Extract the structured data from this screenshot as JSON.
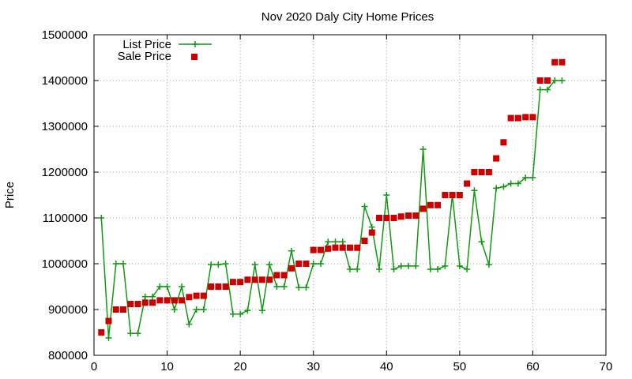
{
  "chart_data": {
    "type": "scatter",
    "title": "Nov 2020 Daly City Home Prices",
    "xlabel": "",
    "ylabel": "Price",
    "xlim": [
      0,
      70
    ],
    "ylim": [
      800000,
      1500000
    ],
    "xticks": [
      0,
      10,
      20,
      30,
      40,
      50,
      60,
      70
    ],
    "yticks": [
      800000,
      900000,
      1000000,
      1100000,
      1200000,
      1300000,
      1400000,
      1500000
    ],
    "grid": true,
    "legend_position": "top-left",
    "x": [
      1,
      2,
      3,
      4,
      5,
      6,
      7,
      8,
      9,
      10,
      11,
      12,
      13,
      14,
      15,
      16,
      17,
      18,
      19,
      20,
      21,
      22,
      23,
      24,
      25,
      26,
      27,
      28,
      29,
      30,
      31,
      32,
      33,
      34,
      35,
      36,
      37,
      38,
      39,
      40,
      41,
      42,
      43,
      44,
      45,
      46,
      47,
      48,
      49,
      50,
      51,
      52,
      53,
      54,
      55,
      56,
      57,
      58,
      59,
      60,
      61,
      62,
      63,
      64
    ],
    "series": [
      {
        "name": "List Price",
        "style": "line-with-plus-markers",
        "color": "#119911",
        "values": [
          1100000,
          838000,
          1000000,
          1000000,
          848000,
          848000,
          928000,
          928000,
          950000,
          950000,
          900000,
          950000,
          868000,
          900000,
          900000,
          998000,
          998000,
          1000000,
          890000,
          890000,
          898000,
          998000,
          898000,
          998000,
          950000,
          950000,
          1028000,
          948000,
          948000,
          1000000,
          1000000,
          1048000,
          1048000,
          1048000,
          988000,
          988000,
          1125000,
          1080000,
          988000,
          1150000,
          988000,
          995000,
          995000,
          995000,
          1250000,
          988000,
          988000,
          995000,
          1150000,
          995000,
          988000,
          1160000,
          1048000,
          998000,
          1165000,
          1168000,
          1175000,
          1175000,
          1188000,
          1188000,
          1380000,
          1380000,
          1400000,
          1400000
        ]
      },
      {
        "name": "Sale Price",
        "style": "square-markers",
        "color": "#cc0000",
        "values": [
          850000,
          875000,
          900000,
          900000,
          912000,
          912000,
          915000,
          915000,
          920000,
          920000,
          920000,
          920000,
          927000,
          930000,
          930000,
          950000,
          950000,
          950000,
          960000,
          960000,
          965000,
          965000,
          965000,
          965000,
          975000,
          975000,
          990000,
          1000000,
          1000000,
          1030000,
          1030000,
          1033000,
          1035000,
          1035000,
          1035000,
          1035000,
          1050000,
          1068000,
          1100000,
          1100000,
          1100000,
          1103000,
          1105000,
          1105000,
          1120000,
          1128000,
          1128000,
          1150000,
          1150000,
          1150000,
          1175000,
          1200000,
          1200000,
          1200000,
          1230000,
          1265000,
          1318000,
          1318000,
          1320000,
          1320000,
          1400000,
          1400000,
          1440000,
          1440000
        ]
      }
    ]
  }
}
